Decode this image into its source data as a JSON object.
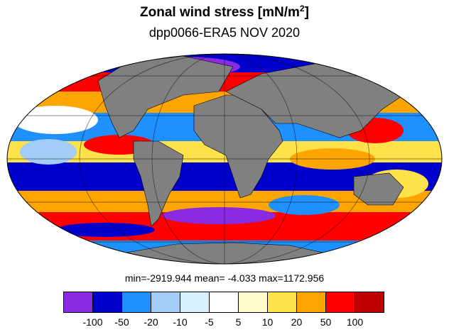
{
  "title": {
    "main": "Zonal wind stress [mN/m",
    "sup": "2",
    "close": "]"
  },
  "subtitle": "dpp0066-ERA5  NOV 2020",
  "stats": {
    "text": "min=-2919.944   mean=  -4.033  max=1172.956"
  },
  "colorbar": {
    "colors": [
      "#8a2be2",
      "#0000cd",
      "#1e90ff",
      "#a3cdf7",
      "#d8f2ff",
      "#ffffff",
      "#fffacd",
      "#ffe14a",
      "#ffa500",
      "#ff0000",
      "#c00000"
    ],
    "labels": [
      "-100",
      "-50",
      "-20",
      "-10",
      "-5",
      "5",
      "10",
      "20",
      "50",
      "100"
    ]
  },
  "map": {
    "projection": "Mollweide",
    "land_color": "#808080"
  }
}
